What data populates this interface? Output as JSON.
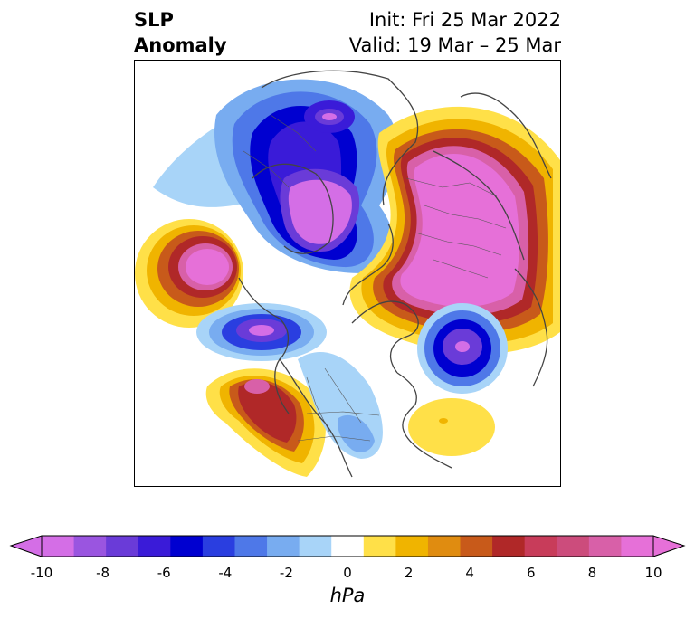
{
  "title": {
    "left_line1": "SLP",
    "left_line2": "Anomaly",
    "right_line1": "Init: Fri 25 Mar 2022",
    "right_line2": "Valid: 19 Mar – 25 Mar"
  },
  "colorbar": {
    "unit_label": "hPa",
    "tick_labels": [
      "-10",
      "-8",
      "-6",
      "-4",
      "-2",
      "0",
      "2",
      "4",
      "6",
      "8",
      "10"
    ],
    "colors": [
      "#d46ee6",
      "#9a55e0",
      "#6a3bd8",
      "#3a1bd8",
      "#0000d0",
      "#2a3ee0",
      "#4e78e8",
      "#78acf0",
      "#a8d4f8",
      "#ffffff",
      "#ffe048",
      "#f0b400",
      "#e08c10",
      "#c85a1a",
      "#b02828",
      "#c83c5a",
      "#cc4c7c",
      "#d860a8",
      "#e670d8"
    ]
  },
  "map": {
    "projection": "north-polar-stereographic",
    "variable": "sea level pressure anomaly"
  }
}
